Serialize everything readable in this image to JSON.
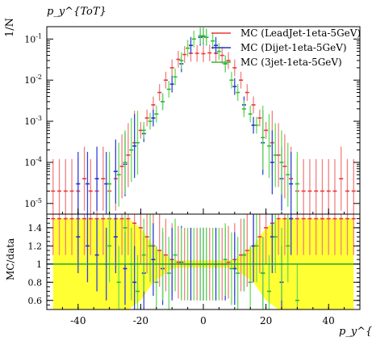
{
  "chart_data": {
    "type": "scatter",
    "title": "p_y^{ToT}",
    "xlabel": "p_y^{ToT}",
    "ylabel_top": "1/N",
    "ylabel_bottom": "MC/data",
    "xlim": [
      -50,
      50
    ],
    "ylim_top": [
      5.5e-06,
      0.2
    ],
    "ylim_bottom": [
      0.5,
      1.55
    ],
    "yscale_top": "log",
    "x_ticks": [
      "-40",
      "-20",
      "0",
      "20",
      "40"
    ],
    "y_ticks_top": [
      "10^-5",
      "10^-4",
      "10^-3",
      "10^-2",
      "10^-1"
    ],
    "y_ticks_bottom": [
      "0.6",
      "0.8",
      "1",
      "1.2",
      "1.4"
    ],
    "legend_position": "top-right",
    "series": [
      {
        "name": "MC (LeadJet-1eta-5GeV)",
        "color": "#e8383b",
        "errcolor": "#f08080",
        "x": [
          -48,
          -46,
          -44,
          -42,
          -40,
          -38,
          -36,
          -34,
          -32,
          -30,
          -28,
          -26,
          -24,
          -22,
          -20,
          -18,
          -16,
          -14,
          -12,
          -10,
          -8,
          -6,
          -4,
          -2,
          0,
          2,
          4,
          6,
          8,
          10,
          12,
          14,
          16,
          18,
          20,
          22,
          24,
          26,
          28,
          30,
          32,
          34,
          36,
          38,
          40,
          42,
          44,
          46,
          48
        ],
        "y": [
          2e-05,
          2e-05,
          2e-05,
          2e-05,
          2e-05,
          4e-05,
          2e-05,
          2e-05,
          4e-05,
          2e-05,
          4e-05,
          8e-05,
          0.00015,
          0.0003,
          0.0006,
          0.0012,
          0.0025,
          0.005,
          0.01,
          0.02,
          0.032,
          0.042,
          0.045,
          0.045,
          0.044,
          0.046,
          0.045,
          0.04,
          0.03,
          0.02,
          0.01,
          0.005,
          0.0025,
          0.0012,
          0.0006,
          0.0003,
          0.00015,
          8e-05,
          4e-05,
          2e-05,
          2e-05,
          2e-05,
          2e-05,
          2e-05,
          2e-05,
          2e-05,
          4e-05,
          2e-05,
          2e-05
        ],
        "ratio": [
          1.5,
          1.5,
          1.5,
          1.5,
          1.5,
          1.5,
          1.5,
          1.5,
          1.5,
          1.5,
          1.5,
          1.5,
          1.5,
          1.45,
          1.4,
          1.3,
          1.2,
          1.15,
          1.1,
          1.05,
          1.02,
          1.0,
          1.0,
          1.0,
          1.0,
          1.0,
          1.0,
          1.0,
          1.02,
          1.05,
          1.1,
          1.15,
          1.2,
          1.3,
          1.4,
          1.45,
          1.5,
          1.5,
          1.5,
          1.5,
          1.5,
          1.5,
          1.5,
          1.5,
          1.5,
          1.5,
          1.5,
          1.5,
          1.5
        ]
      },
      {
        "name": "MC (Dijet-1eta-5GeV)",
        "color": "#2233cc",
        "errcolor": "#3344dd",
        "x": [
          -40,
          -37,
          -34,
          -31,
          -28,
          -25,
          -22,
          -19,
          -16,
          -13,
          -10,
          -7,
          -4,
          -1,
          0,
          1,
          4,
          7,
          10,
          13,
          16,
          19,
          22,
          25,
          28
        ],
        "y": [
          3e-05,
          3e-05,
          4e-05,
          3e-05,
          6e-05,
          9e-05,
          0.00025,
          0.0005,
          0.0012,
          0.003,
          0.008,
          0.025,
          0.07,
          0.11,
          0.115,
          0.11,
          0.07,
          0.025,
          0.007,
          0.0025,
          0.0008,
          0.0003,
          0.0001,
          4e-05,
          3e-05
        ],
        "ratio": [
          1.3,
          1.2,
          1.1,
          1.0,
          1.3,
          0.95,
          0.8,
          0.9,
          1.05,
          0.95,
          1.0,
          1.02,
          1.0,
          1.0,
          1.0,
          1.0,
          1.0,
          1.0,
          0.95,
          1.1,
          1.2,
          0.9,
          1.3,
          0.8,
          1.5
        ]
      },
      {
        "name": "MC (3jet-1eta-5GeV)",
        "color": "#33bb33",
        "errcolor": "#66dd55",
        "x": [
          -30,
          -27,
          -25,
          -23,
          -21,
          -19,
          -17,
          -15,
          -13,
          -11,
          -9,
          -7,
          -5,
          -3,
          -1,
          0,
          1,
          3,
          5,
          7,
          9,
          11,
          13,
          15,
          17,
          19,
          21,
          23,
          25,
          27,
          30
        ],
        "y": [
          3e-05,
          5e-05,
          0.0001,
          0.0002,
          0.0003,
          0.0006,
          0.001,
          0.0015,
          0.003,
          0.006,
          0.012,
          0.03,
          0.06,
          0.1,
          0.12,
          0.12,
          0.11,
          0.09,
          0.05,
          0.025,
          0.01,
          0.005,
          0.002,
          0.0015,
          0.0008,
          0.0004,
          0.00025,
          0.00015,
          0.0001,
          5e-05,
          3e-05
        ],
        "ratio": [
          1.2,
          0.8,
          1.4,
          1.0,
          0.7,
          1.1,
          1.2,
          0.8,
          1.0,
          0.9,
          1.1,
          1.0,
          1.0,
          1.0,
          1.0,
          1.0,
          1.0,
          1.0,
          1.0,
          1.05,
          0.95,
          0.9,
          1.1,
          0.8,
          1.2,
          0.9,
          0.7,
          1.3,
          1.0,
          1.2,
          0.6
        ]
      }
    ]
  }
}
